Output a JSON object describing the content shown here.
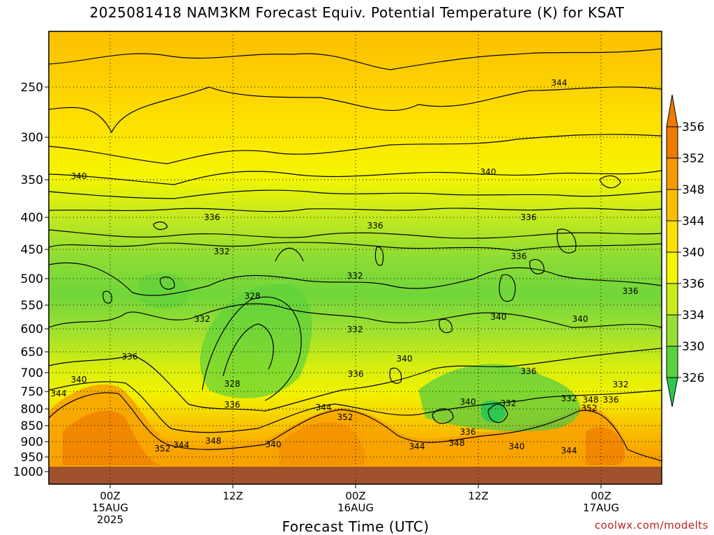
{
  "title": "2025081418 NAM3KM Forecast Equiv. Potential Temperature (K) for KSAT",
  "credit": "coolwx.com/modelts",
  "chart_data": {
    "type": "heatmap",
    "title": "2025081418 NAM3KM Forecast Equiv. Potential Temperature (K) for KSAT",
    "xlabel": "Forecast Time (UTC)",
    "ylabel": "",
    "y_ticks": [
      250,
      300,
      350,
      400,
      450,
      500,
      550,
      600,
      650,
      700,
      750,
      800,
      850,
      900,
      950,
      1000
    ],
    "x_ticks": [
      {
        "line1": "00Z",
        "line2": "15AUG",
        "line3": "2025"
      },
      {
        "line1": "12Z",
        "line2": "",
        "line3": ""
      },
      {
        "line1": "00Z",
        "line2": "16AUG",
        "line3": ""
      },
      {
        "line1": "12Z",
        "line2": "",
        "line3": ""
      },
      {
        "line1": "00Z",
        "line2": "17AUG",
        "line3": ""
      }
    ],
    "colorbar": {
      "levels": [
        356,
        352,
        348,
        344,
        340,
        336,
        334,
        330,
        326
      ],
      "colors": [
        "#f07a00",
        "#f69a00",
        "#fbbf00",
        "#fde000",
        "#f5f500",
        "#c8ec1c",
        "#96e032",
        "#5ad23c",
        "#2ec850"
      ]
    },
    "contour_labels": [
      {
        "text": "344"
      },
      {
        "text": "340"
      },
      {
        "text": "340"
      },
      {
        "text": "336"
      },
      {
        "text": "336"
      },
      {
        "text": "336"
      },
      {
        "text": "332"
      },
      {
        "text": "336"
      },
      {
        "text": "332"
      },
      {
        "text": "336"
      },
      {
        "text": "328"
      },
      {
        "text": "332"
      },
      {
        "text": "332"
      },
      {
        "text": "340"
      },
      {
        "text": "340"
      },
      {
        "text": "336"
      },
      {
        "text": "340"
      },
      {
        "text": "336"
      },
      {
        "text": "340"
      },
      {
        "text": "328"
      },
      {
        "text": "336"
      },
      {
        "text": "336"
      },
      {
        "text": "344"
      },
      {
        "text": "344"
      },
      {
        "text": "352"
      },
      {
        "text": "340"
      },
      {
        "text": "332"
      },
      {
        "text": "332"
      },
      {
        "text": "348"
      },
      {
        "text": "336"
      },
      {
        "text": "352"
      },
      {
        "text": "336"
      },
      {
        "text": "332"
      },
      {
        "text": "352"
      },
      {
        "text": "344"
      },
      {
        "text": "348"
      },
      {
        "text": "340"
      },
      {
        "text": "344"
      },
      {
        "text": "348"
      },
      {
        "text": "340"
      },
      {
        "text": "344"
      }
    ]
  }
}
